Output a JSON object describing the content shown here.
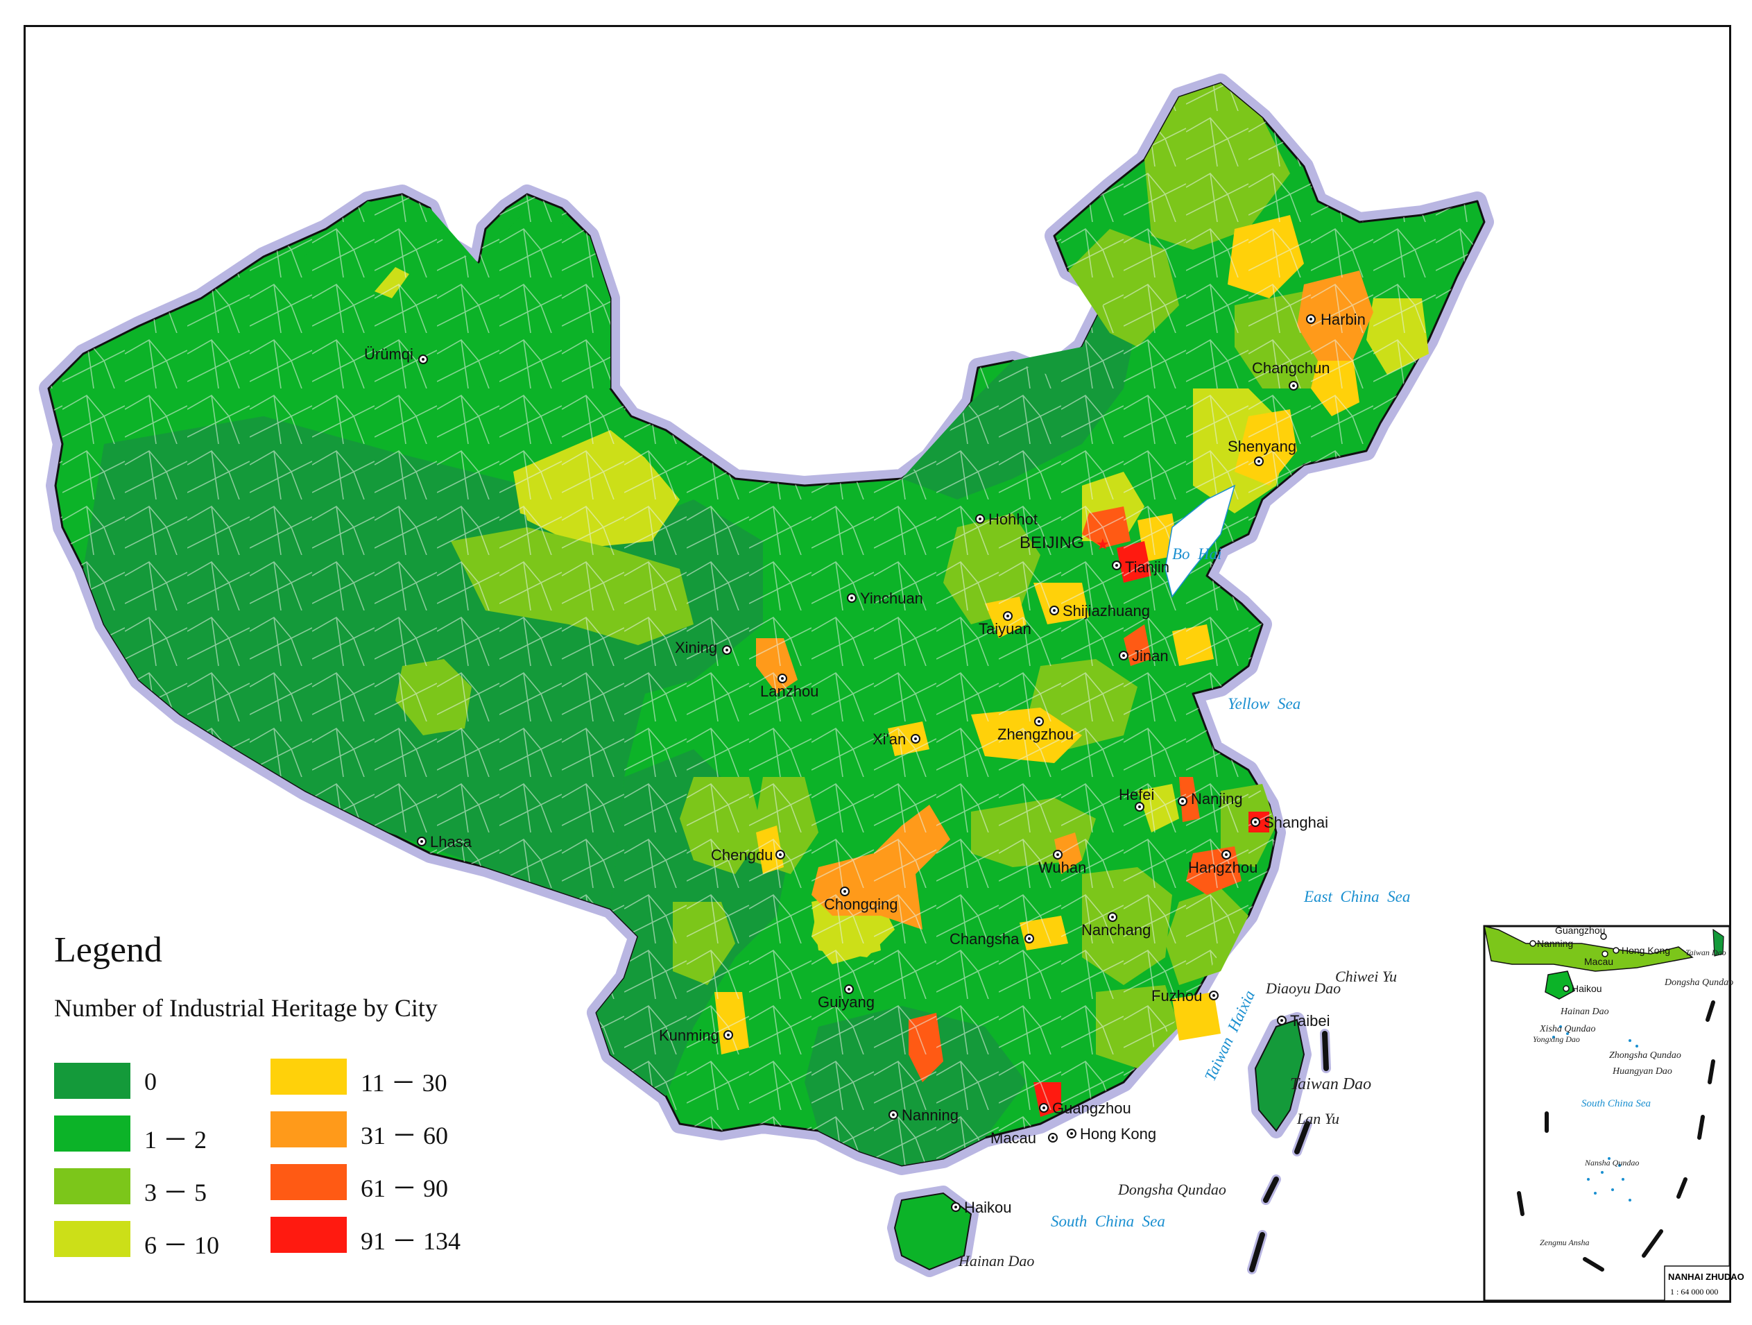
{
  "legend": {
    "title": "Legend",
    "subtitle": "Number of Industrial Heritage by City",
    "classes": [
      {
        "label": "0",
        "color": "#149a3a"
      },
      {
        "label": "1 － 2",
        "color": "#0cb328"
      },
      {
        "label": "3 － 5",
        "color": "#7cc61a"
      },
      {
        "label": "6 － 10",
        "color": "#ccdf18"
      },
      {
        "label": "11 － 30",
        "color": "#ffd10a"
      },
      {
        "label": "31 － 60",
        "color": "#ff9a1a"
      },
      {
        "label": "61 － 90",
        "color": "#ff5a14"
      },
      {
        "label": "91 － 134",
        "color": "#ff1a10"
      }
    ]
  },
  "capital": "BEIJING",
  "cities": [
    "Harbin",
    "Changchun",
    "Shenyang",
    "Hohhot",
    "Tianjin",
    "Ürümqi",
    "Yinchuan",
    "Shijiazhuang",
    "Taiyuan",
    "Xining",
    "Lanzhou",
    "Jinan",
    "Zhengzhou",
    "Xi'an",
    "Hefei",
    "Nanjing",
    "Shanghai",
    "Lhasa",
    "Chengdu",
    "Wuhan",
    "Hangzhou",
    "Chongqing",
    "Changsha",
    "Nanchang",
    "Fuzhou",
    "Guiyang",
    "Kunming",
    "Taibei",
    "Nanning",
    "Guangzhou",
    "Macau",
    "Hong Kong",
    "Haikou"
  ],
  "seas": [
    "Bo Hai",
    "Yellow Sea",
    "East China Sea",
    "South China Sea",
    "Taiwan Haixia"
  ],
  "islands": [
    "Diaoyu Dao",
    "Chiwei Yu",
    "Taiwan Dao",
    "Lan Yu",
    "Dongsha Qundao",
    "Hainan Dao"
  ],
  "inset": {
    "cities": [
      "Guangzhou",
      "Nanning",
      "Hong Kong",
      "Macau",
      "Haikou"
    ],
    "labels": [
      "Taiwan Dao",
      "Dongsha Qundao",
      "Hainan Dao",
      "Xisha Qundao",
      "Yongxing Dao",
      "Zhongsha Qundao",
      "Huangyan Dao",
      "Nansha Qundao",
      "Zengmu Ansha"
    ],
    "sea": "South China Sea",
    "title": "NANHAI ZHUDAO",
    "scale": "1 : 64 000 000"
  }
}
